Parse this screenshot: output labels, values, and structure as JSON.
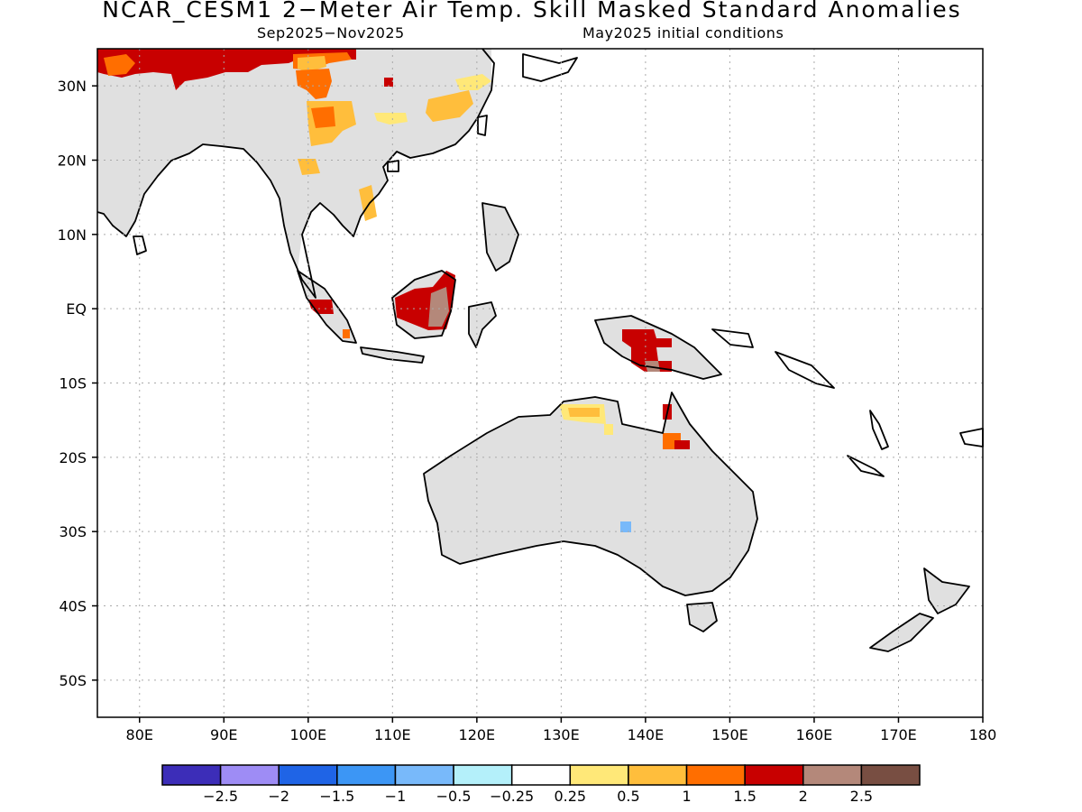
{
  "title": "NCAR_CESM1 2−Meter Air Temp. Skill Masked Standard Anomalies",
  "subtitle_left": "Sep2025−Nov2025",
  "subtitle_right": "May2025 initial conditions",
  "map": {
    "lon_range": [
      75,
      180
    ],
    "lat_range": [
      -55,
      35
    ],
    "lon_ticks": [
      {
        "value": 80,
        "label": "80E"
      },
      {
        "value": 90,
        "label": "90E"
      },
      {
        "value": 100,
        "label": "100E"
      },
      {
        "value": 110,
        "label": "110E"
      },
      {
        "value": 120,
        "label": "120E"
      },
      {
        "value": 130,
        "label": "130E"
      },
      {
        "value": 140,
        "label": "140E"
      },
      {
        "value": 150,
        "label": "150E"
      },
      {
        "value": 160,
        "label": "160E"
      },
      {
        "value": 170,
        "label": "170E"
      },
      {
        "value": 180,
        "label": "180"
      }
    ],
    "lat_ticks": [
      {
        "value": 30,
        "label": "30N"
      },
      {
        "value": 20,
        "label": "20N"
      },
      {
        "value": 10,
        "label": "10N"
      },
      {
        "value": 0,
        "label": "EQ"
      },
      {
        "value": -10,
        "label": "10S"
      },
      {
        "value": -20,
        "label": "20S"
      },
      {
        "value": -30,
        "label": "30S"
      },
      {
        "value": -40,
        "label": "40S"
      },
      {
        "value": -50,
        "label": "50S"
      }
    ],
    "grid": true,
    "masked_land_color": "#e0e0e0",
    "coastline_color": "#000000"
  },
  "colorbar": {
    "colors": [
      "#3c2db8",
      "#9e8cf5",
      "#1f64e6",
      "#3c96f5",
      "#78b9fa",
      "#b4f0fa",
      "#ffffff",
      "#ffe878",
      "#ffbe3c",
      "#ff6e00",
      "#c80000",
      "#b4887a",
      "#784e42"
    ],
    "labels": [
      "−2.5",
      "−2",
      "−1.5",
      "−1",
      "−0.5",
      "−0.25",
      "0.25",
      "0.5",
      "1",
      "1.5",
      "2",
      "2.5"
    ]
  }
}
